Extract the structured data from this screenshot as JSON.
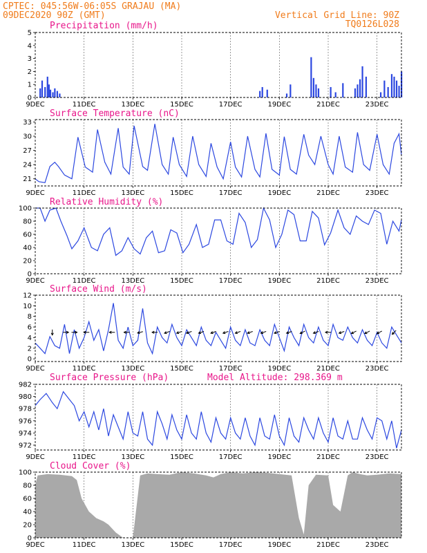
{
  "header": {
    "line1": "CPTEC:   045:56W-06:05S  GRAJAU (MA)",
    "line2": "09DEC2020 90Z (GMT)",
    "right1": "Vertical Grid Line: 90Z",
    "right2": "TQ0126L028"
  },
  "colors": {
    "header": "#f07b1a",
    "panel_title": "#e8168a",
    "series": "#2b47e0",
    "cloud_fill": "#a9a9a9",
    "wind_arrow": "#000000"
  },
  "x_tick_labels": [
    "9DEC",
    "11DEC",
    "13DEC",
    "15DEC",
    "17DEC",
    "19DEC",
    "21DEC",
    "23DEC"
  ],
  "chart_data": [
    {
      "id": "precip",
      "type": "bar",
      "title": "Precipitation (mm/h)",
      "ylim": [
        0,
        5
      ],
      "yticks": [
        0,
        1,
        2,
        3,
        4,
        5
      ],
      "x_unit": "days since 9DEC 00Z",
      "x": [
        0.2,
        0.28,
        0.4,
        0.5,
        0.56,
        0.62,
        0.72,
        0.8,
        0.9,
        1.0,
        9.2,
        9.3,
        9.5,
        10.3,
        10.45,
        11.3,
        11.4,
        11.5,
        11.6,
        12.1,
        12.3,
        12.6,
        13.1,
        13.2,
        13.3,
        13.4,
        13.55,
        14.15,
        14.3,
        14.45,
        14.6,
        14.7,
        14.8,
        14.9,
        15.0
      ],
      "values": [
        0.7,
        1.3,
        0.8,
        1.6,
        1.0,
        0.6,
        0.4,
        0.7,
        0.5,
        0.3,
        0.5,
        0.8,
        0.6,
        0.3,
        1.0,
        3.1,
        1.5,
        1.0,
        0.7,
        0.8,
        0.4,
        1.1,
        0.7,
        1.0,
        1.4,
        2.4,
        1.6,
        0.4,
        1.3,
        0.8,
        1.8,
        1.6,
        1.3,
        0.9,
        2.0
      ]
    },
    {
      "id": "temp",
      "type": "line",
      "title": "Surface Temperature (nC)",
      "ylim": [
        19.5,
        33.5
      ],
      "yticks": [
        21,
        24,
        27,
        30,
        33
      ],
      "x_unit": "days since 9DEC 00Z",
      "x": [
        0,
        0.15,
        0.4,
        0.6,
        0.8,
        0.95,
        1.2,
        1.5,
        1.75,
        2.05,
        2.35,
        2.55,
        2.85,
        3.1,
        3.4,
        3.6,
        3.85,
        4.05,
        4.4,
        4.6,
        4.9,
        5.2,
        5.45,
        5.65,
        5.9,
        6.2,
        6.45,
        6.7,
        7.0,
        7.2,
        7.45,
        7.7,
        8.0,
        8.2,
        8.45,
        8.7,
        9.0,
        9.2,
        9.45,
        9.7,
        10.0,
        10.2,
        10.45,
        10.7,
        11.0,
        11.2,
        11.45,
        11.7,
        12.0,
        12.2,
        12.45,
        12.7,
        13.0,
        13.2,
        13.45,
        13.7,
        14.0,
        14.25,
        14.5,
        14.7,
        14.9,
        15.0
      ],
      "values": [
        21.0,
        20.4,
        20.2,
        23.6,
        24.5,
        23.6,
        21.8,
        21.0,
        29.8,
        23.5,
        22.4,
        31.4,
        24.5,
        22.0,
        31.7,
        23.5,
        22.0,
        32.2,
        23.6,
        22.8,
        32.6,
        24.0,
        22.0,
        29.8,
        24.0,
        21.5,
        30.0,
        24.0,
        21.5,
        28.5,
        23.5,
        21.0,
        28.8,
        23.5,
        21.4,
        30.0,
        23.0,
        21.4,
        30.6,
        23.0,
        21.8,
        29.9,
        23.0,
        22.0,
        30.4,
        26.0,
        24.0,
        30.0,
        24.0,
        22.0,
        30.0,
        23.5,
        22.4,
        30.8,
        24.0,
        22.8,
        30.4,
        24.0,
        22.0,
        28.5,
        30.5,
        26.0
      ]
    },
    {
      "id": "rh",
      "type": "line",
      "title": "Relative Humidity (%)",
      "ylim": [
        0,
        100
      ],
      "yticks": [
        0,
        20,
        40,
        60,
        80,
        100
      ],
      "x_unit": "days since 9DEC 00Z",
      "x": [
        0,
        0.2,
        0.4,
        0.6,
        0.85,
        1.05,
        1.3,
        1.5,
        1.75,
        2.0,
        2.3,
        2.55,
        2.8,
        3.05,
        3.3,
        3.55,
        3.8,
        4.05,
        4.3,
        4.55,
        4.8,
        5.05,
        5.3,
        5.55,
        5.8,
        6.05,
        6.3,
        6.6,
        6.85,
        7.1,
        7.35,
        7.6,
        7.85,
        8.1,
        8.35,
        8.6,
        8.85,
        9.1,
        9.35,
        9.6,
        9.85,
        10.1,
        10.35,
        10.6,
        10.85,
        11.1,
        11.35,
        11.6,
        11.85,
        12.1,
        12.4,
        12.65,
        12.9,
        13.15,
        13.4,
        13.65,
        13.9,
        14.15,
        14.4,
        14.65,
        14.9,
        15.0
      ],
      "values": [
        100,
        100,
        80,
        97,
        100,
        80,
        58,
        38,
        50,
        70,
        40,
        35,
        60,
        70,
        28,
        35,
        55,
        38,
        30,
        55,
        65,
        32,
        35,
        67,
        62,
        32,
        45,
        75,
        40,
        45,
        82,
        82,
        50,
        45,
        92,
        78,
        40,
        52,
        100,
        82,
        40,
        60,
        97,
        90,
        50,
        50,
        95,
        85,
        44,
        62,
        97,
        70,
        60,
        88,
        80,
        75,
        97,
        92,
        45,
        80,
        65,
        82
      ]
    },
    {
      "id": "wind",
      "type": "line",
      "title": "Surface Wind (m/s)",
      "ylim": [
        -0.5,
        12
      ],
      "yticks": [
        0,
        2,
        4,
        6,
        8,
        10,
        12
      ],
      "x_unit": "days since 9DEC 00Z",
      "x": [
        0,
        0.2,
        0.4,
        0.6,
        0.8,
        1.0,
        1.2,
        1.4,
        1.6,
        1.8,
        2.0,
        2.2,
        2.4,
        2.6,
        2.8,
        3.0,
        3.2,
        3.4,
        3.6,
        3.8,
        4.0,
        4.2,
        4.4,
        4.6,
        4.8,
        5.0,
        5.2,
        5.4,
        5.6,
        5.8,
        6.0,
        6.2,
        6.4,
        6.6,
        6.8,
        7.0,
        7.2,
        7.4,
        7.6,
        7.8,
        8.0,
        8.2,
        8.4,
        8.6,
        8.8,
        9.0,
        9.2,
        9.4,
        9.6,
        9.8,
        10.0,
        10.2,
        10.4,
        10.6,
        10.8,
        11.0,
        11.2,
        11.4,
        11.6,
        11.8,
        12.0,
        12.2,
        12.4,
        12.6,
        12.8,
        13.0,
        13.2,
        13.4,
        13.6,
        13.8,
        14.0,
        14.2,
        14.4,
        14.6,
        14.8,
        15.0
      ],
      "values": [
        3.0,
        2.0,
        1.0,
        4.2,
        2.5,
        2.0,
        6.5,
        1.0,
        5.5,
        2.0,
        4.0,
        7.0,
        3.5,
        5.5,
        1.5,
        5.5,
        10.5,
        3.5,
        2.0,
        6.0,
        2.5,
        3.5,
        9.5,
        3.0,
        1.0,
        6.0,
        4.0,
        3.0,
        6.5,
        4.0,
        2.5,
        5.5,
        4.0,
        2.5,
        6.0,
        3.5,
        2.5,
        5.0,
        3.5,
        2.0,
        6.0,
        3.5,
        2.5,
        5.5,
        3.0,
        2.5,
        5.5,
        3.5,
        2.5,
        6.5,
        4.0,
        1.5,
        6.0,
        4.0,
        2.5,
        6.5,
        4.0,
        3.0,
        6.0,
        3.5,
        2.5,
        6.5,
        4.0,
        3.5,
        6.0,
        4.0,
        3.0,
        5.5,
        3.5,
        2.5,
        5.0,
        3.0,
        2.0,
        6.0,
        4.5,
        3.0
      ],
      "vectors": {
        "x": [
          0.7,
          1.25,
          1.6,
          2.1,
          3.15,
          3.75,
          4.3,
          4.9,
          5.4,
          5.9,
          6.3,
          6.8,
          7.3,
          7.8,
          8.3,
          8.8,
          9.35,
          9.9,
          10.4,
          10.95,
          11.5,
          12.0,
          12.55,
          13.05,
          13.6,
          14.1,
          14.7
        ],
        "u": [
          0,
          2,
          3,
          -4,
          -5,
          -5,
          -4,
          -4,
          -3,
          -3,
          -3,
          -3,
          -3,
          -3,
          -3,
          -3,
          -3,
          -3,
          -3,
          -2,
          -3,
          -3,
          -3,
          -2,
          -2,
          -2,
          -1
        ],
        "v": [
          -3,
          0,
          0,
          0,
          0,
          0,
          -1,
          0,
          -1,
          -1,
          -1,
          -1,
          -1,
          -1,
          -1,
          -1,
          -1,
          -1,
          -1,
          -1,
          -1,
          0,
          -1,
          -1,
          -1,
          -1,
          -1
        ]
      }
    },
    {
      "id": "pres",
      "type": "line",
      "title": "Surface Pressure (hPa)",
      "annotation": "Model Altitude: 298.369 m",
      "ylim": [
        971.2,
        982
      ],
      "yticks": [
        972,
        974,
        976,
        978,
        980,
        982
      ],
      "x_unit": "days since 9DEC 00Z",
      "x": [
        0,
        0.2,
        0.45,
        0.7,
        0.9,
        1.15,
        1.4,
        1.6,
        1.8,
        2.0,
        2.2,
        2.4,
        2.6,
        2.8,
        3.0,
        3.2,
        3.4,
        3.6,
        3.8,
        4.0,
        4.2,
        4.4,
        4.6,
        4.8,
        5.0,
        5.2,
        5.4,
        5.6,
        5.8,
        6.0,
        6.2,
        6.4,
        6.6,
        6.8,
        7.0,
        7.2,
        7.4,
        7.6,
        7.8,
        8.0,
        8.2,
        8.4,
        8.6,
        8.8,
        9.0,
        9.2,
        9.4,
        9.6,
        9.8,
        10.0,
        10.2,
        10.4,
        10.6,
        10.8,
        11.0,
        11.2,
        11.4,
        11.6,
        11.8,
        12.0,
        12.2,
        12.4,
        12.6,
        12.8,
        13.0,
        13.2,
        13.4,
        13.6,
        13.8,
        14.0,
        14.2,
        14.4,
        14.6,
        14.8,
        15.0
      ],
      "values": [
        978.5,
        979.5,
        980.5,
        979.0,
        978.0,
        980.8,
        979.5,
        978.5,
        976.0,
        977.5,
        975.0,
        977.5,
        974.5,
        978.0,
        973.5,
        977.0,
        975.0,
        973.0,
        977.5,
        974.0,
        973.5,
        977.5,
        973.0,
        972.0,
        977.5,
        975.5,
        973.0,
        977.0,
        974.5,
        973.0,
        977.0,
        974.0,
        973.0,
        977.5,
        974.0,
        972.5,
        976.5,
        974.0,
        973.0,
        976.5,
        974.0,
        973.0,
        976.5,
        973.5,
        972.0,
        976.5,
        973.5,
        973.0,
        977.0,
        973.5,
        972.0,
        976.5,
        973.5,
        972.5,
        976.5,
        974.5,
        973.0,
        976.5,
        974.0,
        972.5,
        976.5,
        973.5,
        973.0,
        976.0,
        973.0,
        973.0,
        976.5,
        974.5,
        973.0,
        976.5,
        976.0,
        973.0,
        976.0,
        971.5,
        974.5
      ]
    },
    {
      "id": "cloud",
      "type": "area",
      "title": "Cloud Cover (%)",
      "ylim": [
        0,
        100
      ],
      "yticks": [
        0,
        20,
        40,
        60,
        80,
        100
      ],
      "x_unit": "days since 9DEC 00Z",
      "x": [
        0,
        0.1,
        0.5,
        1.0,
        1.5,
        1.7,
        1.9,
        2.2,
        2.5,
        2.8,
        3.0,
        3.3,
        3.6,
        3.8,
        4.0,
        4.3,
        4.6,
        5.0,
        5.5,
        6.0,
        6.5,
        7.0,
        7.3,
        7.6,
        8.0,
        8.5,
        9.0,
        9.5,
        10.0,
        10.5,
        10.8,
        11.0,
        11.2,
        11.5,
        12.0,
        12.2,
        12.5,
        12.8,
        13.0,
        13.3,
        13.6,
        14.0,
        14.5,
        15.0
      ],
      "values": [
        80,
        95,
        97,
        96,
        94,
        88,
        60,
        40,
        30,
        25,
        20,
        8,
        0,
        0,
        0,
        95,
        98,
        97,
        96,
        100,
        98,
        95,
        92,
        97,
        100,
        98,
        100,
        99,
        97,
        95,
        30,
        5,
        80,
        96,
        95,
        50,
        40,
        95,
        100,
        97,
        95,
        96,
        98,
        97
      ]
    }
  ]
}
